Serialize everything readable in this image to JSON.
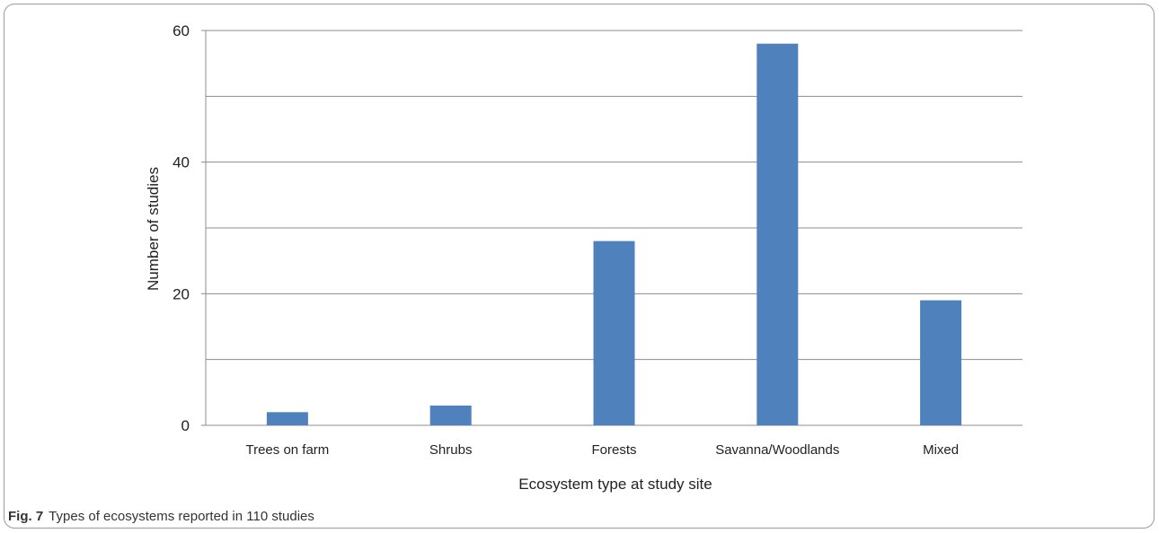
{
  "chart_data": {
    "type": "bar",
    "categories": [
      "Trees on farm",
      "Shrubs",
      "Forests",
      "Savanna/Woodlands",
      "Mixed"
    ],
    "values": [
      2,
      3,
      28,
      58,
      19
    ],
    "title": "",
    "xlabel": "Ecosystem type at study site",
    "ylabel": "Number of studies",
    "ylim": [
      0,
      60
    ],
    "yticks": [
      0,
      20,
      40,
      60
    ],
    "minor_gridlines": [
      10,
      30,
      50
    ],
    "grid": true,
    "legend": "none",
    "bar_color": "#4f81bd",
    "grid_color": "#8c8c8c"
  },
  "caption": {
    "label": "Fig. 7",
    "text": "Types of ecosystems reported in 110 studies"
  }
}
